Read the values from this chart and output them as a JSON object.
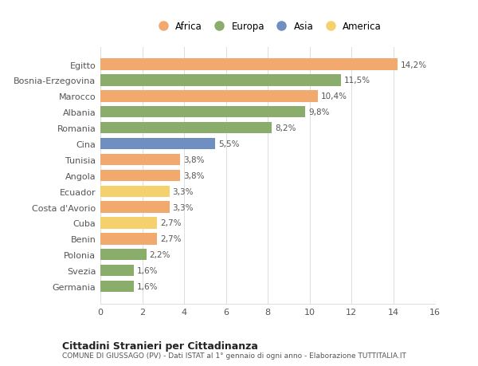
{
  "countries": [
    "Germania",
    "Svezia",
    "Polonia",
    "Benin",
    "Cuba",
    "Costa d'Avorio",
    "Ecuador",
    "Angola",
    "Tunisia",
    "Cina",
    "Romania",
    "Albania",
    "Marocco",
    "Bosnia-Erzegovina",
    "Egitto"
  ],
  "values": [
    1.6,
    1.6,
    2.2,
    2.7,
    2.7,
    3.3,
    3.3,
    3.8,
    3.8,
    5.5,
    8.2,
    9.8,
    10.4,
    11.5,
    14.2
  ],
  "colors": [
    "#8aad6b",
    "#8aad6b",
    "#8aad6b",
    "#f2a96d",
    "#f5d16e",
    "#f2a96d",
    "#f5d16e",
    "#f2a96d",
    "#f2a96d",
    "#6e8fc0",
    "#8aad6b",
    "#8aad6b",
    "#f2a96d",
    "#8aad6b",
    "#f2a96d"
  ],
  "labels": [
    "1,6%",
    "1,6%",
    "2,2%",
    "2,7%",
    "2,7%",
    "3,3%",
    "3,3%",
    "3,8%",
    "3,8%",
    "5,5%",
    "8,2%",
    "9,8%",
    "10,4%",
    "11,5%",
    "14,2%"
  ],
  "legend_names": [
    "Africa",
    "Europa",
    "Asia",
    "America"
  ],
  "legend_colors": [
    "#f2a96d",
    "#8aad6b",
    "#6e8fc0",
    "#f5d16e"
  ],
  "title": "Cittadini Stranieri per Cittadinanza",
  "subtitle": "COMUNE DI GIUSSAGO (PV) - Dati ISTAT al 1° gennaio di ogni anno - Elaborazione TUTTITALIA.IT",
  "xlim": [
    0,
    16
  ],
  "xticks": [
    0,
    2,
    4,
    6,
    8,
    10,
    12,
    14,
    16
  ],
  "background_color": "#ffffff",
  "grid_color": "#dddddd",
  "bar_height": 0.72
}
